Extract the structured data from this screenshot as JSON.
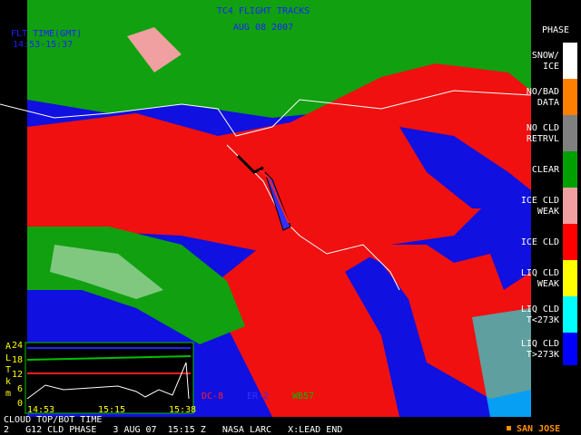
{
  "header": {
    "title": "TC4 FLIGHT TRACKS",
    "date": "AUG 08 2007",
    "flight_time_label": "FLT TIME(GMT)",
    "flight_time": "14:53-15:37"
  },
  "legend": {
    "title": "PHASE",
    "items": [
      {
        "lines": [
          "SNOW/",
          "ICE"
        ],
        "color": "#ffffff"
      },
      {
        "lines": [
          "NO/BAD",
          "DATA"
        ],
        "color": "#ff7f00"
      },
      {
        "lines": [
          "NO CLD",
          "RETRVL"
        ],
        "color": "#808080"
      },
      {
        "lines": [
          "CLEAR"
        ],
        "color": "#00a000"
      },
      {
        "lines": [
          "ICE CLD",
          "WEAK"
        ],
        "color": "#f0a0a0"
      },
      {
        "lines": [
          "ICE CLD"
        ],
        "color": "#ff0000"
      },
      {
        "lines": [
          "LIQ CLD",
          "WEAK"
        ],
        "color": "#ffff00"
      },
      {
        "lines": [
          "LIQ CLD",
          "T<273K"
        ],
        "color": "#00ffff"
      },
      {
        "lines": [
          "LIQ CLD",
          "T>273K"
        ],
        "color": "#0000ff"
      }
    ]
  },
  "inset": {
    "axis_label": [
      "A",
      "L",
      "T",
      "k",
      "m"
    ],
    "yticks": [
      24,
      18,
      12,
      6,
      0
    ],
    "xticks": [
      "14:53",
      "15:15",
      "15:38"
    ],
    "caption": "CLOUD TOP/BOT TIME"
  },
  "aircraft": [
    {
      "name": "DC-8",
      "color": "#ff2020"
    },
    {
      "name": "ER-2",
      "color": "#3030ff"
    },
    {
      "name": "WB57",
      "color": "#00c000"
    }
  ],
  "footer": {
    "text": "2   G12 CLD PHASE   3 AUG 07  15:15 Z   NASA LARC   X:LEAD END",
    "marker_label": "SAN JOSE"
  }
}
